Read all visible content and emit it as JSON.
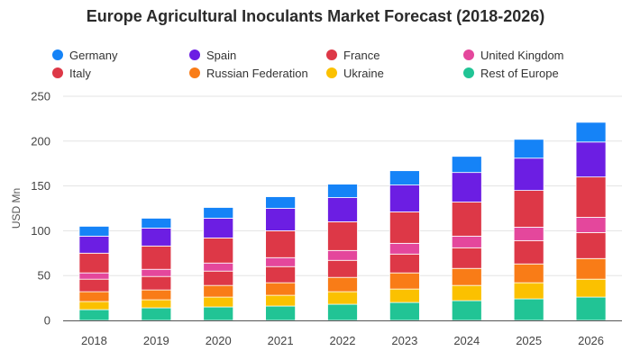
{
  "chart_data": {
    "type": "bar",
    "stacked": true,
    "title": "Europe Agricultural Inoculants Market Forecast (2018-2026)",
    "xlabel": "",
    "ylabel": "USD Mn",
    "ylim": [
      0,
      250
    ],
    "yticks": [
      "0",
      "50",
      "100",
      "150",
      "200",
      "250"
    ],
    "grid": "horizontal",
    "legend_position": "top",
    "categories": [
      "2018",
      "2019",
      "2020",
      "2021",
      "2022",
      "2023",
      "2024",
      "2025",
      "2026"
    ],
    "series": [
      {
        "name": "Rest of Europe",
        "color": "#21c495",
        "values": [
          12,
          14,
          15,
          16,
          18,
          20,
          22,
          24,
          26
        ]
      },
      {
        "name": "Ukraine",
        "color": "#fbc100",
        "values": [
          9,
          9,
          11,
          12,
          14,
          15,
          17,
          18,
          20
        ]
      },
      {
        "name": "Russian Federation",
        "color": "#f97c17",
        "values": [
          11,
          11,
          13,
          14,
          16,
          18,
          19,
          21,
          23
        ]
      },
      {
        "name": "Italy",
        "color": "#dd3847",
        "values": [
          14,
          15,
          16,
          18,
          19,
          21,
          23,
          26,
          29
        ]
      },
      {
        "name": "United Kingdom",
        "color": "#e4479c",
        "values": [
          7,
          8,
          9,
          10,
          11,
          12,
          13,
          15,
          17
        ]
      },
      {
        "name": "France",
        "color": "#dd3847",
        "values": [
          22,
          26,
          28,
          30,
          32,
          35,
          38,
          41,
          45
        ]
      },
      {
        "name": "Spain",
        "color": "#6c1ee3",
        "values": [
          19,
          20,
          22,
          25,
          27,
          30,
          33,
          36,
          39
        ]
      },
      {
        "name": "Germany",
        "color": "#1583f7",
        "values": [
          11,
          11,
          12,
          13,
          15,
          16,
          18,
          21,
          22
        ]
      }
    ],
    "legend_order": [
      "Germany",
      "Spain",
      "France",
      "United Kingdom",
      "Italy",
      "Russian Federation",
      "Ukraine",
      "Rest of Europe"
    ]
  }
}
